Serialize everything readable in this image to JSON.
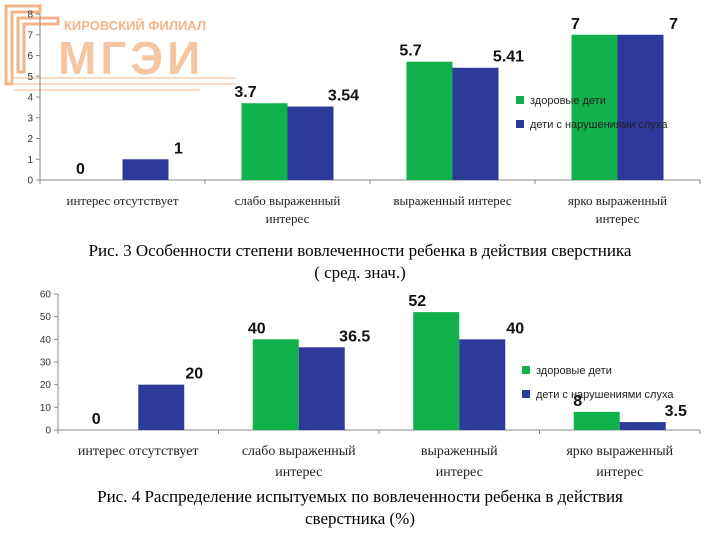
{
  "logo": {
    "subtitle": "КИРОВСКИЙ ФИЛИАЛ",
    "wordmark": "МГЭИ",
    "color": "#f0a070"
  },
  "captions": {
    "fig3_line1": "Рис. 3 Особенности степени вовлеченности ребенка в действия сверстника",
    "fig3_line2": "( сред. знач.)",
    "fig4_line1": "Рис. 4 Распределение испытуемых по вовлеченности ребенка в действия",
    "fig4_line2": "сверстника (%)"
  },
  "chart_data": [
    {
      "type": "bar",
      "categories": [
        [
          "интерес отсутствует"
        ],
        [
          "слабо выраженный",
          "интерес"
        ],
        [
          "выраженный интерес"
        ],
        [
          "ярко выраженный",
          "интерес"
        ]
      ],
      "series": [
        {
          "name": "здоровые дети",
          "values": [
            0,
            3.7,
            5.7,
            7
          ],
          "labels": [
            "0",
            "3.7",
            "5.7",
            "7"
          ],
          "color": "#10b04a"
        },
        {
          "name": "дети с нарушениями слуха",
          "values": [
            1,
            3.54,
            5.41,
            7
          ],
          "labels": [
            "1",
            "3.54",
            "5.41",
            "7"
          ],
          "color": "#2e3a9a"
        }
      ],
      "y_ticks": [
        0,
        1,
        2,
        3,
        4,
        5,
        6,
        7,
        8
      ],
      "ylim": [
        0,
        8
      ],
      "grid": false,
      "legend_position": "right"
    },
    {
      "type": "bar",
      "categories": [
        [
          "интерес отсутствует"
        ],
        [
          "слабо выраженный",
          "интерес"
        ],
        [
          "выраженный",
          "интерес"
        ],
        [
          "ярко выраженный",
          "интерес"
        ]
      ],
      "series": [
        {
          "name": "здоровые дети",
          "values": [
            0,
            40,
            52,
            8
          ],
          "labels": [
            "0",
            "40",
            "52",
            "8"
          ],
          "color": "#10b04a"
        },
        {
          "name": "дети с нарушениями слуха",
          "values": [
            20,
            36.5,
            40,
            3.5
          ],
          "labels": [
            "20",
            "36.5",
            "40",
            "3.5"
          ],
          "color": "#2e3a9a"
        }
      ],
      "y_ticks": [
        0,
        10,
        20,
        30,
        40,
        50,
        60
      ],
      "ylim": [
        0,
        60
      ],
      "grid": false,
      "legend_position": "right"
    }
  ]
}
